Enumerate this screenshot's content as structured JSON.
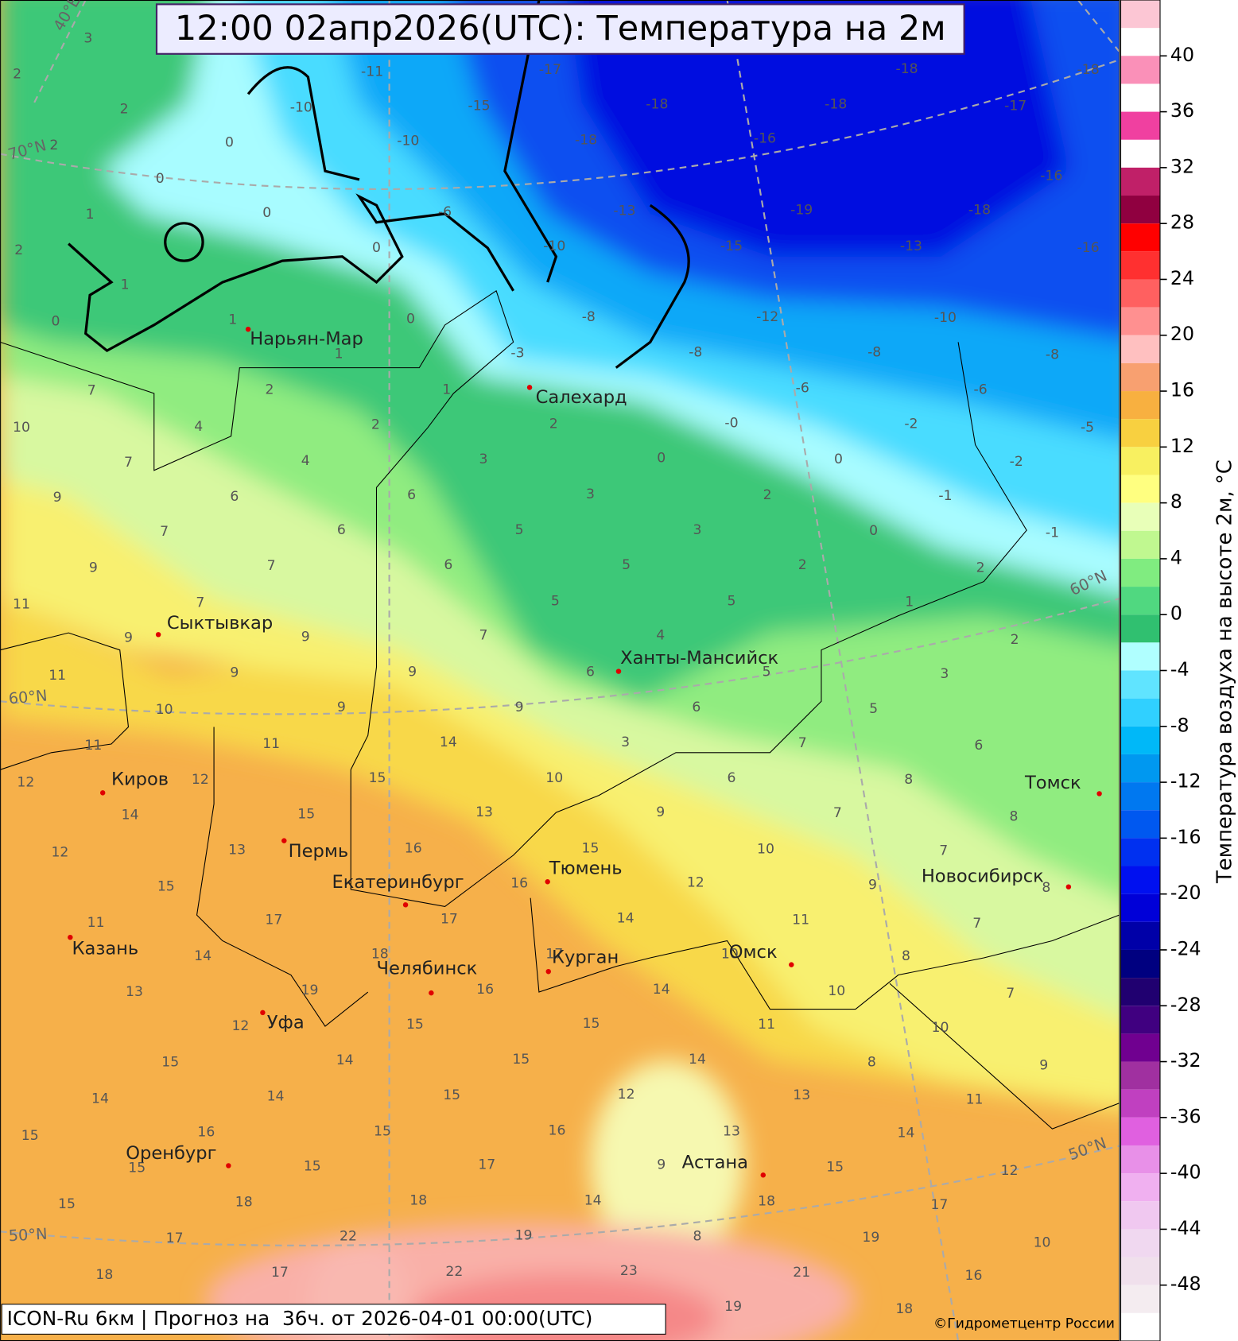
{
  "header": {
    "title": "12:00 02апр2026(UTC): Температура на 2м"
  },
  "footer": {
    "model": "ICON-Ru 6км | Прогноз на  36ч. от 2026-04-01 00:00(UTC)",
    "credit": "©Гидрометцентр России"
  },
  "colorbar": {
    "label": "Температура воздуха на высоте 2м, °C",
    "range": [
      -52,
      44
    ],
    "ticks": [
      40,
      36,
      32,
      28,
      24,
      20,
      16,
      12,
      8,
      4,
      0,
      -4,
      -8,
      -12,
      -16,
      -20,
      -24,
      -28,
      -32,
      -36,
      -40,
      -44,
      -48
    ]
  },
  "map": {
    "cities": [
      "Нарьян-Мар",
      "Салехард",
      "Сыктывкар",
      "Ханты-Мансийск",
      "Киров",
      "Пермь",
      "Екатеринбург",
      "Тюмень",
      "Томск",
      "Новосибирск",
      "Казань",
      "Омск",
      "Курган",
      "Челябинск",
      "Уфа",
      "Оренбург",
      "Астана"
    ],
    "graticule": [
      "70°N",
      "60°N",
      "50°N",
      "60°N",
      "50°N",
      "40°E"
    ],
    "values": [
      3,
      2,
      2,
      0,
      -10,
      -11,
      -15,
      -17,
      -18,
      -18,
      -18,
      -17,
      -18,
      -10,
      -18,
      -16,
      2,
      0,
      1,
      0,
      -6,
      -13,
      -19,
      -18,
      -16,
      2,
      1,
      0,
      -10,
      -15,
      -13,
      -16,
      0,
      1,
      0,
      -8,
      -12,
      -10,
      1,
      -3,
      -8,
      -8,
      -8,
      7,
      2,
      1,
      -6,
      -6,
      10,
      4,
      2,
      2,
      "-0",
      -2,
      -5,
      7,
      4,
      3,
      0,
      0,
      -2,
      9,
      6,
      6,
      3,
      2,
      -1,
      7,
      6,
      5,
      3,
      0,
      -1,
      9,
      7,
      6,
      5,
      2,
      2,
      11,
      7,
      5,
      5,
      1,
      9,
      9,
      7,
      4,
      2,
      11,
      9,
      9,
      6,
      5,
      3,
      10,
      9,
      9,
      6,
      5,
      11,
      11,
      14,
      3,
      7,
      6,
      12,
      12,
      15,
      10,
      6,
      8,
      14,
      15,
      13,
      9,
      7,
      8,
      12,
      13,
      16,
      15,
      10,
      7,
      15,
      16,
      12,
      9,
      8,
      11,
      17,
      17,
      14,
      11,
      7,
      14,
      18,
      17,
      10,
      8,
      13,
      19,
      16,
      14,
      10,
      7,
      12,
      15,
      15,
      11,
      10,
      15,
      14,
      15,
      14,
      8,
      9,
      14,
      14,
      15,
      12,
      13,
      11,
      15,
      16,
      15,
      16,
      13,
      14,
      15,
      15,
      17,
      9,
      15,
      12,
      15,
      18,
      18,
      14,
      18,
      17,
      17,
      22,
      19,
      8,
      19,
      10,
      18,
      17,
      22,
      23,
      21,
      16,
      19,
      18
    ]
  }
}
